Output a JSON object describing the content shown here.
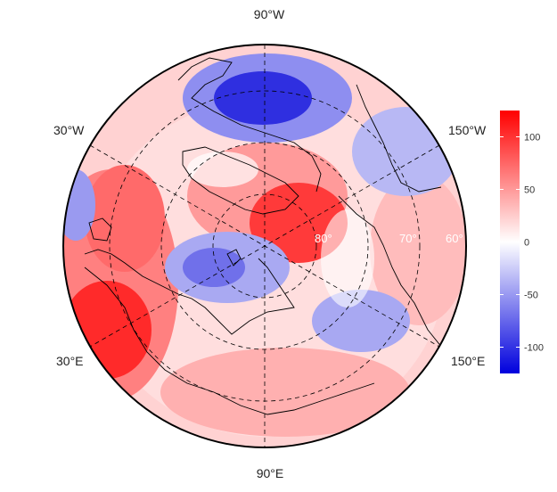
{
  "longitude_labels": {
    "top": "90°W",
    "upper_left": "30°W",
    "upper_right": "150°W",
    "lower_left": "30°E",
    "lower_right": "150°E",
    "bottom": "90°E"
  },
  "latitude_labels": [
    "80°",
    "70°",
    "60°"
  ],
  "colorbar": {
    "ticks": [
      "100",
      "50",
      "0",
      "-50",
      "-100"
    ],
    "range": [
      -125,
      125
    ],
    "colors": {
      "low": "#0000dd",
      "mid": "#ffffff",
      "high": "#ff0000"
    }
  },
  "colors": {
    "background": "#ffffff",
    "grid": "#000000",
    "coastline": "#000000"
  }
}
